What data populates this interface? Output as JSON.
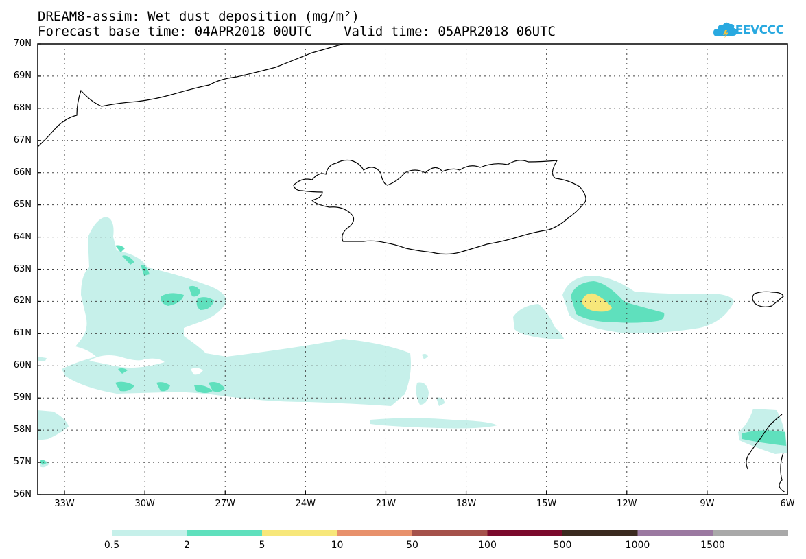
{
  "title_line1": "DREAM8-assim: Wet dust deposition (mg/m²)",
  "title_line2": "Forecast base time: 04APR2018 00UTC    Valid time: 05APR2018 06UTC",
  "logo_text": "SEEVCCC",
  "logo_icon": "cloud-icon",
  "map": {
    "lat_range": [
      "56N",
      "70N"
    ],
    "lon_range": [
      "34W",
      "6W"
    ],
    "lat_labels": [
      "70N",
      "69N",
      "68N",
      "67N",
      "66N",
      "65N",
      "64N",
      "63N",
      "62N",
      "61N",
      "60N",
      "59N",
      "58N",
      "57N",
      "56N"
    ],
    "lon_labels": [
      "33W",
      "30W",
      "27W",
      "24W",
      "21W",
      "18W",
      "15W",
      "12W",
      "9W",
      "6W"
    ],
    "gridlines": "dotted"
  },
  "legend": {
    "labels": [
      "0.5",
      "2",
      "5",
      "10",
      "50",
      "100",
      "500",
      "1000",
      "1500"
    ],
    "colors": [
      "#c6f0ea",
      "#5fe0bd",
      "#f7e77a",
      "#e8916c",
      "#a5524b",
      "#7b0a2c",
      "#3b2a1f",
      "#9b79a1",
      "#a9a9a9"
    ]
  }
}
